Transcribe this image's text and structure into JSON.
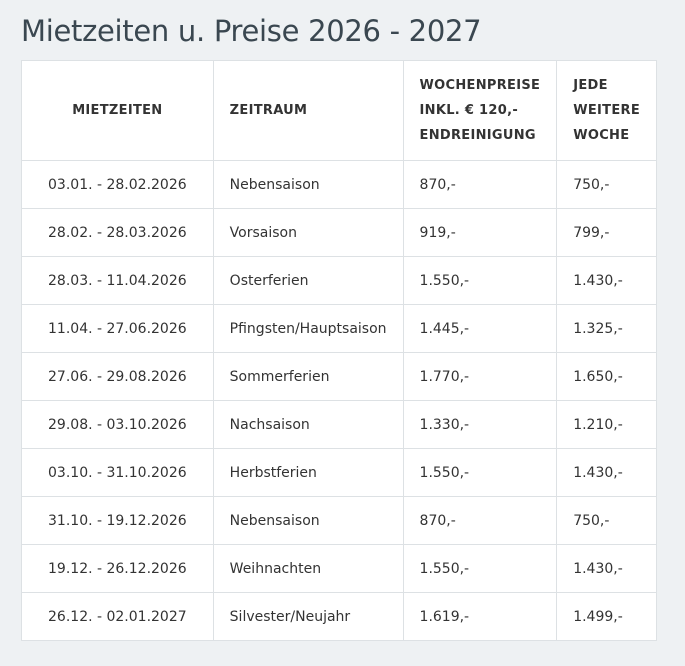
{
  "title": "Mietzeiten u. Preise 2026 - 2027",
  "table": {
    "header": [
      "MIETZEITEN",
      "ZEITRAUM",
      "WOCHENPREISE INKL. € 120,- ENDREINIGUNG",
      "JEDE WEITERE WOCHE"
    ],
    "rows": [
      [
        "03.01. - 28.02.2026",
        "Nebensaison",
        "870,-",
        "750,-"
      ],
      [
        "28.02. - 28.03.2026",
        "Vorsaison",
        "919,-",
        "799,-"
      ],
      [
        "28.03. - 11.04.2026",
        "Osterferien",
        "1.550,-",
        "1.430,-"
      ],
      [
        "11.04. - 27.06.2026",
        "Pfingsten/Hauptsaison",
        "1.445,-",
        "1.325,-"
      ],
      [
        "27.06. - 29.08.2026",
        "Sommerferien",
        "1.770,-",
        "1.650,-"
      ],
      [
        "29.08. - 03.10.2026",
        "Nachsaison",
        "1.330,-",
        "1.210,-"
      ],
      [
        "03.10. - 31.10.2026",
        "Herbstferien",
        "1.550,-",
        "1.430,-"
      ],
      [
        "31.10. - 19.12.2026",
        "Nebensaison",
        "870,-",
        "750,-"
      ],
      [
        "19.12. - 26.12.2026",
        "Weihnachten",
        "1.550,-",
        "1.430,-"
      ],
      [
        "26.12. - 02.01.2027",
        "Silvester/Neujahr",
        "1.619,-",
        "1.499,-"
      ]
    ]
  }
}
